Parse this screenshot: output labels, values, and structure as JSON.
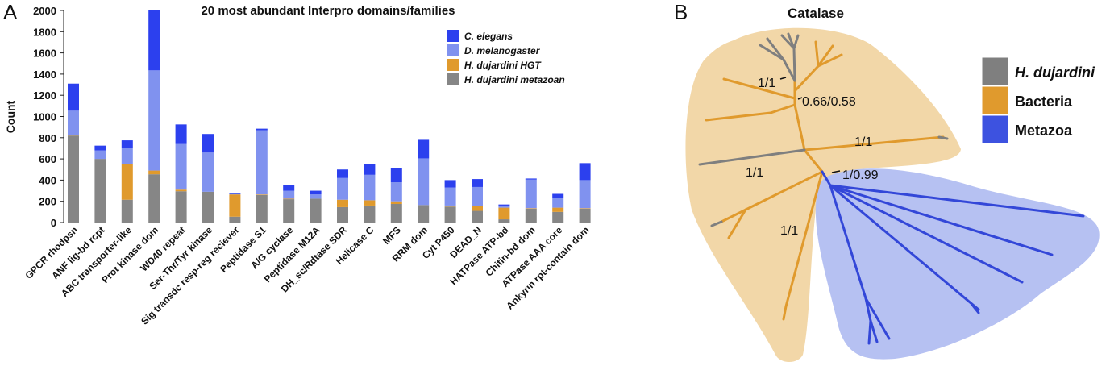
{
  "panel_a": {
    "letter": "A",
    "chart_data": {
      "type": "bar",
      "stacked": true,
      "title": "20 most abundant Interpro domains/families",
      "ylabel": "Count",
      "xlabel": "",
      "ylim": [
        0,
        2000
      ],
      "yticks": [
        0,
        200,
        400,
        600,
        800,
        1000,
        1200,
        1400,
        1600,
        1800,
        2000
      ],
      "grid": false,
      "legend_position": "top-right",
      "categories": [
        "GPCR rhodpsn",
        "ANF lig-bd rcpt",
        "ABC transporter-like",
        "Prot kinase dom",
        "WD40 repeat",
        "Ser-Thr/Tyr kinase",
        "Sig transdc resp-reg reciever",
        "Peptidase S1",
        "A/G cyclase",
        "Peptidase M12A",
        "DH_sc/Rdtase SDR",
        "Helicase C",
        "MFS",
        "RRM dom",
        "Cyt P450",
        "DEAD_N",
        "HATPase ATP-bd",
        "Chitin-bd dom",
        "ATPase AAA core",
        "Ankyrin rpt-contain dom"
      ],
      "series": [
        {
          "name": "H. dujardini metazoan",
          "color": "#868686",
          "values": [
            820,
            600,
            215,
            455,
            295,
            290,
            55,
            260,
            220,
            225,
            145,
            160,
            175,
            165,
            150,
            110,
            30,
            130,
            100,
            130
          ]
        },
        {
          "name": "H. dujardini HGT",
          "color": "#e09a2d",
          "values": [
            5,
            0,
            340,
            35,
            15,
            0,
            210,
            5,
            5,
            0,
            70,
            50,
            25,
            0,
            10,
            45,
            110,
            5,
            40,
            5
          ]
        },
        {
          "name": "D. melanogaster",
          "color": "#8092ef",
          "values": [
            230,
            80,
            150,
            945,
            430,
            370,
            5,
            605,
            75,
            40,
            205,
            240,
            180,
            440,
            170,
            180,
            20,
            270,
            95,
            265
          ]
        },
        {
          "name": "C. elegans",
          "color": "#2c40ee",
          "values": [
            255,
            45,
            70,
            565,
            185,
            175,
            10,
            15,
            55,
            35,
            80,
            100,
            130,
            175,
            70,
            75,
            10,
            10,
            35,
            160
          ]
        }
      ],
      "legend_order": [
        "C. elegans",
        "D. melanogaster",
        "H. dujardini HGT",
        "H. dujardini metazoan"
      ]
    }
  },
  "panel_b": {
    "letter": "B",
    "title": "Catalase",
    "support_values": [
      "1/1",
      "0.66/0.58",
      "1/1",
      "1/1",
      "1/0.99",
      "1/1"
    ],
    "legend": [
      {
        "label": "H. dujardini",
        "color": "#7f7f7f",
        "italic": true
      },
      {
        "label": "Bacteria",
        "color": "#e09a2d",
        "italic": false
      },
      {
        "label": "Metazoa",
        "color": "#3d52e0",
        "italic": false
      }
    ],
    "colors": {
      "bacteria_region": "#f2d7a8",
      "metazoa_region": "#b6c1f2",
      "bacteria_branch": "#e09a2d",
      "metazoa_branch": "#3347d8",
      "tardigrade_branch": "#7f7f7f"
    }
  }
}
